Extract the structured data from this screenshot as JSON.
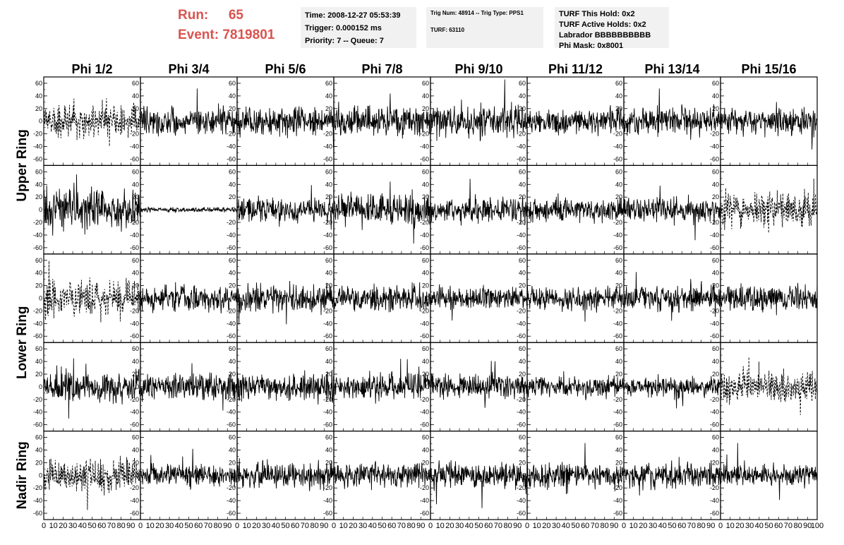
{
  "header": {
    "run_label": "Run:",
    "run_value": "65",
    "event_label": "Event:",
    "event_value": "7819801"
  },
  "info_time": {
    "lines": [
      "Time: 2008-12-27 05:53:39",
      "Trigger: 0.000152 ms",
      "Priority: 7 -- Queue: 7"
    ]
  },
  "info_trig": {
    "lines": [
      "Trig Num: 48914 -- Trig Type: PPS1",
      "",
      "TURF: 63110"
    ]
  },
  "info_turf": {
    "lines": [
      "TURF This Hold: 0x2",
      "TURF Active Holds: 0x2",
      "Labrador BBBBBBBBBB",
      "Phi Mask: 0x8001"
    ]
  },
  "chart_data": {
    "type": "line",
    "columns": [
      "Phi 1/2",
      "Phi 3/4",
      "Phi 5/6",
      "Phi 7/8",
      "Phi 9/10",
      "Phi 11/12",
      "Phi 13/14",
      "Phi 15/16"
    ],
    "ring_labels": [
      {
        "name": "Upper Ring",
        "rows": [
          0,
          1
        ]
      },
      {
        "name": "Lower Ring",
        "rows": [
          2,
          3
        ]
      },
      {
        "name": "Nadir Ring",
        "rows": [
          4,
          4
        ]
      }
    ],
    "xlim": [
      0,
      100
    ],
    "ylim": [
      -70,
      70
    ],
    "xticks": [
      0,
      10,
      20,
      30,
      40,
      50,
      60,
      70,
      80,
      90,
      100
    ],
    "yticks": [
      -60,
      -40,
      -20,
      0,
      20,
      40,
      60
    ],
    "samples_per_trace": 260,
    "last_x_tick_label": "100",
    "amplitude": [
      [
        22,
        18,
        18,
        18,
        20,
        16,
        18,
        18
      ],
      [
        24,
        3,
        16,
        20,
        16,
        14,
        16,
        22
      ],
      [
        22,
        16,
        18,
        16,
        14,
        14,
        16,
        16
      ],
      [
        20,
        18,
        18,
        16,
        16,
        14,
        12,
        20
      ],
      [
        22,
        14,
        16,
        16,
        16,
        16,
        16,
        14
      ]
    ],
    "dashed": [
      [
        true,
        false,
        false,
        false,
        false,
        false,
        false,
        false
      ],
      [
        false,
        false,
        false,
        false,
        false,
        false,
        false,
        true
      ],
      [
        true,
        false,
        false,
        false,
        false,
        false,
        false,
        false
      ],
      [
        false,
        false,
        false,
        false,
        false,
        false,
        false,
        true
      ],
      [
        true,
        false,
        false,
        false,
        false,
        false,
        false,
        false
      ]
    ]
  }
}
